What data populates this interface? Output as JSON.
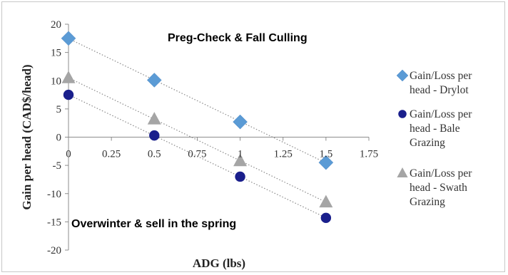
{
  "chart_data": {
    "type": "scatter",
    "title": "",
    "xlabel": "ADG (lbs)",
    "ylabel": "Gain per head (CAD$/head)",
    "xlim": [
      0,
      1.75
    ],
    "ylim": [
      -20,
      20
    ],
    "x_ticks": [
      "0",
      "0.25",
      "0.5",
      "0.75",
      "1",
      "1.25",
      "1.5",
      "1.75"
    ],
    "y_ticks": [
      "20",
      "15",
      "10",
      "5",
      "0",
      "-5",
      "-10",
      "-15",
      "-20"
    ],
    "grid": false,
    "legend_position": "right",
    "trendlines": "linear, dotted",
    "annotations": [
      "Preg-Check & Fall Culling",
      "Overwinter & sell in the spring"
    ],
    "series": [
      {
        "name": "Gain/Loss per head - Drylot",
        "legend_lines": [
          "Gain/Loss per",
          "head - Drylot"
        ],
        "marker": "diamond",
        "color": "#5b9bd5",
        "x": [
          0,
          0.5,
          1,
          1.5
        ],
        "y": [
          17.5,
          10.1,
          2.7,
          -4.5
        ]
      },
      {
        "name": "Gain/Loss per head - Bale Grazing",
        "legend_lines": [
          "Gain/Loss per",
          "head - Bale",
          "Grazing"
        ],
        "marker": "circle",
        "color": "#1a1f8c",
        "x": [
          0,
          0.5,
          1,
          1.5
        ],
        "y": [
          7.5,
          0.3,
          -7.0,
          -14.3
        ]
      },
      {
        "name": "Gain/Loss per head - Swath Grazing",
        "legend_lines": [
          "Gain/Loss per",
          "head - Swath",
          "Grazing"
        ],
        "marker": "triangle",
        "color": "#a5a5a5",
        "x": [
          0,
          0.5,
          1,
          1.5
        ],
        "y": [
          10.5,
          3.2,
          -4.2,
          -11.5
        ]
      }
    ]
  }
}
